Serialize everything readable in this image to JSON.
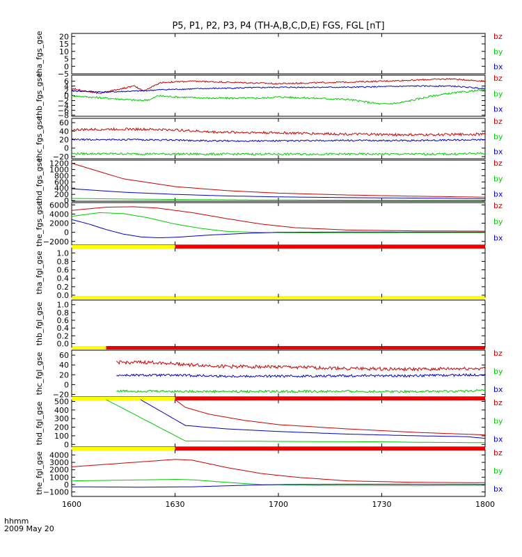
{
  "title": "P5, P1, P2, P3, P4 (TH-A,B,C,D,E) FGS, FGL [nT]",
  "footer": {
    "time_label": "hhmm",
    "date_label": "2009 May 20"
  },
  "colors": {
    "bx": "#0000cc",
    "by": "#00cc00",
    "bz": "#cc0000",
    "flag_yellow": "#ffff00",
    "flag_red": "#ee0000"
  },
  "x_axis": {
    "range_min": [
      960,
      1080
    ],
    "ticks": [
      {
        "label": "1600",
        "min": 960
      },
      {
        "label": "1630",
        "min": 990
      },
      {
        "label": "1700",
        "min": 1020
      },
      {
        "label": "1730",
        "min": 1050
      },
      {
        "label": "1800",
        "min": 1080
      }
    ]
  },
  "chart_data": [
    {
      "type": "line",
      "ylabel": "tha_fgs_gse",
      "ylim": [
        -5,
        22
      ],
      "yticks": [
        "20",
        "15",
        "10",
        "5",
        "0",
        "−5"
      ],
      "legend": [
        "bz",
        "by",
        "bx"
      ],
      "series": []
    },
    {
      "type": "line",
      "ylabel": "thb_fgs_gse",
      "ylim": [
        -8.5,
        8.5
      ],
      "yticks": [
        "6",
        "4",
        "2",
        "0",
        "−2",
        "−4",
        "−6",
        "−8"
      ],
      "legend": [
        "bz",
        "by",
        "bx"
      ],
      "series": [
        {
          "name": "bz",
          "noise": 0.35,
          "points": [
            [
              960,
              3
            ],
            [
              968,
              1
            ],
            [
              973,
              2.5
            ],
            [
              978,
              4
            ],
            [
              981,
              2
            ],
            [
              983,
              3.5
            ],
            [
              986,
              5.5
            ],
            [
              995,
              6
            ],
            [
              1020,
              5
            ],
            [
              1035,
              5.5
            ],
            [
              1050,
              6
            ],
            [
              1060,
              6.5
            ],
            [
              1070,
              7
            ],
            [
              1080,
              6
            ]
          ]
        },
        {
          "name": "bx",
          "noise": 0.3,
          "points": [
            [
              960,
              2
            ],
            [
              970,
              1.5
            ],
            [
              980,
              2
            ],
            [
              986,
              2.5
            ],
            [
              1000,
              3
            ],
            [
              1020,
              3.5
            ],
            [
              1040,
              3.5
            ],
            [
              1060,
              4
            ],
            [
              1070,
              4
            ],
            [
              1080,
              3
            ]
          ]
        },
        {
          "name": "by",
          "noise": 0.45,
          "points": [
            [
              960,
              0
            ],
            [
              970,
              -1
            ],
            [
              980,
              -2
            ],
            [
              983,
              -1.5
            ],
            [
              985,
              0
            ],
            [
              990,
              -0.5
            ],
            [
              1000,
              -1
            ],
            [
              1015,
              -1
            ],
            [
              1020,
              -0.5
            ],
            [
              1040,
              -1.5
            ],
            [
              1050,
              -3.5
            ],
            [
              1055,
              -3
            ],
            [
              1060,
              -1.5
            ],
            [
              1065,
              0
            ],
            [
              1070,
              1
            ],
            [
              1080,
              2.5
            ]
          ]
        }
      ]
    },
    {
      "type": "line",
      "ylabel": "thc_fgs_gse",
      "ylim": [
        -25,
        70
      ],
      "yticks": [
        "60",
        "40",
        "20",
        "0",
        "−20"
      ],
      "legend": [
        "bz",
        "by",
        "bx"
      ],
      "series": [
        {
          "name": "bz",
          "noise": 0.6,
          "points": [
            [
              960,
              43
            ],
            [
              975,
              45
            ],
            [
              990,
              43
            ],
            [
              1000,
              38
            ],
            [
              1020,
              36
            ],
            [
              1040,
              33
            ],
            [
              1060,
              31
            ],
            [
              1080,
              33
            ]
          ]
        },
        {
          "name": "bx",
          "noise": 0.4,
          "points": [
            [
              960,
              20
            ],
            [
              975,
              20
            ],
            [
              990,
              19
            ],
            [
              1000,
              17
            ],
            [
              1020,
              17
            ],
            [
              1040,
              18
            ],
            [
              1060,
              18
            ],
            [
              1080,
              20
            ]
          ]
        },
        {
          "name": "by",
          "noise": 0.5,
          "points": [
            [
              960,
              -13
            ],
            [
              1000,
              -14
            ],
            [
              1040,
              -14
            ],
            [
              1070,
              -14
            ],
            [
              1080,
              -12
            ]
          ]
        }
      ]
    },
    {
      "type": "line",
      "ylabel": "thd_fgs_gse",
      "ylim": [
        -20,
        1300
      ],
      "yticks": [
        "1200",
        "1000",
        "800",
        "600",
        "400",
        "200",
        "0"
      ],
      "legend": [
        "bz",
        "by",
        "bx"
      ],
      "series": [
        {
          "name": "bz",
          "noise": 0,
          "points": [
            [
              960,
              1200
            ],
            [
              975,
              700
            ],
            [
              990,
              450
            ],
            [
              1005,
              320
            ],
            [
              1020,
              240
            ],
            [
              1040,
              180
            ],
            [
              1060,
              140
            ],
            [
              1080,
              110
            ]
          ]
        },
        {
          "name": "bx",
          "noise": 0,
          "points": [
            [
              960,
              380
            ],
            [
              975,
              270
            ],
            [
              990,
              200
            ],
            [
              1005,
              150
            ],
            [
              1020,
              120
            ],
            [
              1040,
              95
            ],
            [
              1060,
              80
            ],
            [
              1080,
              60
            ]
          ]
        },
        {
          "name": "by",
          "noise": 0,
          "points": [
            [
              960,
              70
            ],
            [
              975,
              50
            ],
            [
              990,
              35
            ],
            [
              1010,
              22
            ],
            [
              1040,
              12
            ],
            [
              1080,
              8
            ]
          ]
        }
      ]
    },
    {
      "type": "line",
      "ylabel": "the_fgs_gse",
      "ylim": [
        -2800,
        6500
      ],
      "yticks": [
        "6000",
        "4000",
        "2000",
        "0",
        "−2000"
      ],
      "legend": [
        "bz",
        "by",
        "bx"
      ],
      "series": [
        {
          "name": "bz",
          "noise": 0,
          "points": [
            [
              960,
              4800
            ],
            [
              970,
              5500
            ],
            [
              978,
              5600
            ],
            [
              985,
              5300
            ],
            [
              995,
              4300
            ],
            [
              1005,
              3000
            ],
            [
              1015,
              1800
            ],
            [
              1025,
              1000
            ],
            [
              1040,
              500
            ],
            [
              1060,
              300
            ],
            [
              1080,
              250
            ]
          ]
        },
        {
          "name": "by",
          "noise": 0,
          "points": [
            [
              960,
              3500
            ],
            [
              968,
              4300
            ],
            [
              975,
              4100
            ],
            [
              982,
              3200
            ],
            [
              990,
              1800
            ],
            [
              998,
              800
            ],
            [
              1005,
              200
            ],
            [
              1015,
              -50
            ],
            [
              1030,
              -80
            ],
            [
              1060,
              -60
            ],
            [
              1080,
              -50
            ]
          ]
        },
        {
          "name": "bx",
          "noise": 0,
          "points": [
            [
              960,
              2800
            ],
            [
              965,
              1800
            ],
            [
              970,
              600
            ],
            [
              975,
              -400
            ],
            [
              980,
              -1000
            ],
            [
              985,
              -1200
            ],
            [
              990,
              -1100
            ],
            [
              1000,
              -600
            ],
            [
              1010,
              -250
            ],
            [
              1020,
              0
            ],
            [
              1040,
              50
            ],
            [
              1080,
              30
            ]
          ]
        }
      ]
    },
    {
      "type": "line",
      "ylabel": "tha_fgl_gse",
      "ylim": [
        -0.05,
        1.12
      ],
      "yticks": [
        "1.0",
        "0.8",
        "0.6",
        "0.4",
        "0.2",
        "0.0"
      ],
      "flag_top": [
        {
          "from": 960,
          "to": 990,
          "color": "yellow"
        },
        {
          "from": 990,
          "to": 1080,
          "color": "red"
        }
      ],
      "flag_bottom": [
        {
          "from": 960,
          "to": 1080,
          "color": "yellow"
        }
      ],
      "legend": [],
      "series": []
    },
    {
      "type": "line",
      "ylabel": "thb_fgl_gse",
      "ylim": [
        -0.1,
        1.12
      ],
      "yticks": [
        "1.0",
        "0.8",
        "0.6",
        "0.4",
        "0.2",
        "0.0"
      ],
      "flag_bottom": [
        {
          "from": 960,
          "to": 970,
          "color": "yellow"
        },
        {
          "from": 970,
          "to": 1080,
          "color": "red"
        }
      ],
      "legend": [],
      "series": []
    },
    {
      "type": "line",
      "ylabel": "thc_fgl_gse",
      "ylim": [
        -25,
        70
      ],
      "yticks": [
        "60",
        "40",
        "20",
        "0",
        "−20"
      ],
      "legend": [
        "bz",
        "by",
        "bx"
      ],
      "series": [
        {
          "name": "bz",
          "noise": 0.7,
          "points": [
            [
              973,
              45
            ],
            [
              985,
              45
            ],
            [
              995,
              40
            ],
            [
              1005,
              37
            ],
            [
              1020,
              36
            ],
            [
              1040,
              33
            ],
            [
              1060,
              31
            ],
            [
              1080,
              33
            ]
          ]
        },
        {
          "name": "bx",
          "noise": 0.5,
          "points": [
            [
              973,
              19
            ],
            [
              990,
              19
            ],
            [
              1005,
              17
            ],
            [
              1020,
              17
            ],
            [
              1040,
              18
            ],
            [
              1060,
              18
            ],
            [
              1080,
              20
            ]
          ]
        },
        {
          "name": "by",
          "noise": 0.5,
          "points": [
            [
              973,
              -13
            ],
            [
              1000,
              -14
            ],
            [
              1040,
              -14
            ],
            [
              1070,
              -14
            ],
            [
              1080,
              -12
            ]
          ]
        }
      ]
    },
    {
      "type": "line",
      "ylabel": "thd_fgl_gse",
      "ylim": [
        -30,
        520
      ],
      "yticks": [
        "500",
        "400",
        "300",
        "200",
        "100",
        "0"
      ],
      "flag_top": [
        {
          "from": 960,
          "to": 990,
          "color": "yellow"
        },
        {
          "from": 990,
          "to": 1080,
          "color": "red"
        }
      ],
      "legend": [
        "bz",
        "by",
        "bx"
      ],
      "series": [
        {
          "name": "bz",
          "noise": 0,
          "points": [
            [
              990,
              520
            ],
            [
              993,
              430
            ],
            [
              1000,
              350
            ],
            [
              1010,
              280
            ],
            [
              1020,
              230
            ],
            [
              1040,
              180
            ],
            [
              1060,
              140
            ],
            [
              1080,
              110
            ]
          ]
        },
        {
          "name": "bx",
          "noise": 0,
          "points": [
            [
              980,
              520
            ],
            [
              993,
              220
            ],
            [
              1005,
              180
            ],
            [
              1020,
              150
            ],
            [
              1040,
              120
            ],
            [
              1060,
              100
            ],
            [
              1075,
              90
            ],
            [
              1080,
              70
            ]
          ]
        },
        {
          "name": "by",
          "noise": 0,
          "points": [
            [
              970,
              520
            ],
            [
              993,
              40
            ],
            [
              1020,
              35
            ],
            [
              1050,
              30
            ],
            [
              1060,
              25
            ],
            [
              1080,
              20
            ]
          ]
        }
      ]
    },
    {
      "type": "line",
      "ylabel": "the_fgl_gse",
      "ylim": [
        -1600,
        4700
      ],
      "yticks": [
        "4000",
        "3000",
        "2000",
        "1000",
        "0",
        "−1000"
      ],
      "flag_top": [
        {
          "from": 960,
          "to": 990,
          "color": "yellow"
        },
        {
          "from": 990,
          "to": 1080,
          "color": "red"
        }
      ],
      "legend": [
        "bz",
        "by",
        "bx"
      ],
      "series": [
        {
          "name": "bz",
          "noise": 0,
          "points": [
            [
              960,
              2400
            ],
            [
              975,
              2900
            ],
            [
              990,
              3400
            ],
            [
              995,
              3300
            ],
            [
              1005,
              2300
            ],
            [
              1015,
              1500
            ],
            [
              1025,
              1000
            ],
            [
              1040,
              500
            ],
            [
              1060,
              300
            ],
            [
              1080,
              250
            ]
          ]
        },
        {
          "name": "by",
          "noise": 0,
          "points": [
            [
              960,
              500
            ],
            [
              975,
              600
            ],
            [
              990,
              700
            ],
            [
              995,
              650
            ],
            [
              1005,
              300
            ],
            [
              1015,
              0
            ],
            [
              1030,
              -100
            ],
            [
              1060,
              -150
            ],
            [
              1080,
              -100
            ]
          ]
        },
        {
          "name": "bx",
          "noise": 0,
          "points": [
            [
              960,
              -300
            ],
            [
              980,
              -350
            ],
            [
              995,
              -300
            ],
            [
              1010,
              -100
            ],
            [
              1020,
              0
            ],
            [
              1040,
              50
            ],
            [
              1080,
              30
            ]
          ]
        }
      ]
    }
  ]
}
